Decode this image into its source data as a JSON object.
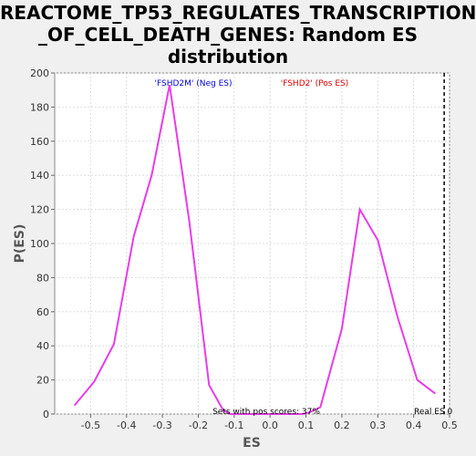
{
  "chart_data": {
    "type": "line",
    "title_lines": [
      "REACTOME_TP53_REGULATES_TRANSCRIPTION",
      "_OF_CELL_DEATH_GENES: Random ES",
      "distribution"
    ],
    "xlabel": "ES",
    "ylabel": "P(ES)",
    "xlim": [
      -0.6,
      0.5
    ],
    "ylim": [
      0,
      200
    ],
    "x_ticks": [
      -0.5,
      -0.4,
      -0.3,
      -0.2,
      -0.1,
      0.0,
      0.1,
      0.2,
      0.3,
      0.4,
      0.5
    ],
    "x_tick_labels": [
      "-0.5",
      "-0.4",
      "-0.3",
      "-0.2",
      "-0.1",
      "0.0",
      "0.1",
      "0.2",
      "0.3",
      "0.4",
      "0.5"
    ],
    "y_ticks": [
      0,
      20,
      40,
      60,
      80,
      100,
      120,
      140,
      160,
      180,
      200
    ],
    "grid": true,
    "series": [
      {
        "color": "#e83ce8",
        "x": [
          -0.545,
          -0.49,
          -0.435,
          -0.38,
          -0.33,
          -0.28,
          -0.225,
          -0.17,
          -0.13,
          -0.11,
          -0.07,
          0.0,
          0.06,
          0.09,
          0.11,
          0.14,
          0.2,
          0.25,
          0.3,
          0.355,
          0.41,
          0.46
        ],
        "y": [
          5,
          19,
          41,
          104,
          140,
          193,
          113,
          17,
          2,
          0,
          0,
          0,
          0,
          0,
          1,
          4,
          50,
          120,
          102,
          57,
          20,
          12
        ]
      }
    ],
    "real_es_line": {
      "x": 0.485,
      "label": "Real ES 0"
    },
    "annotations": {
      "neg": {
        "text": "'FSHD2M' (Neg ES)",
        "color": "#0000dd"
      },
      "pos": {
        "text": "'FSHD2' (Pos ES)",
        "color": "#dd0000"
      },
      "pos_scores": {
        "text": "Sets with pos scores: 37%",
        "color": "#000000"
      }
    }
  }
}
